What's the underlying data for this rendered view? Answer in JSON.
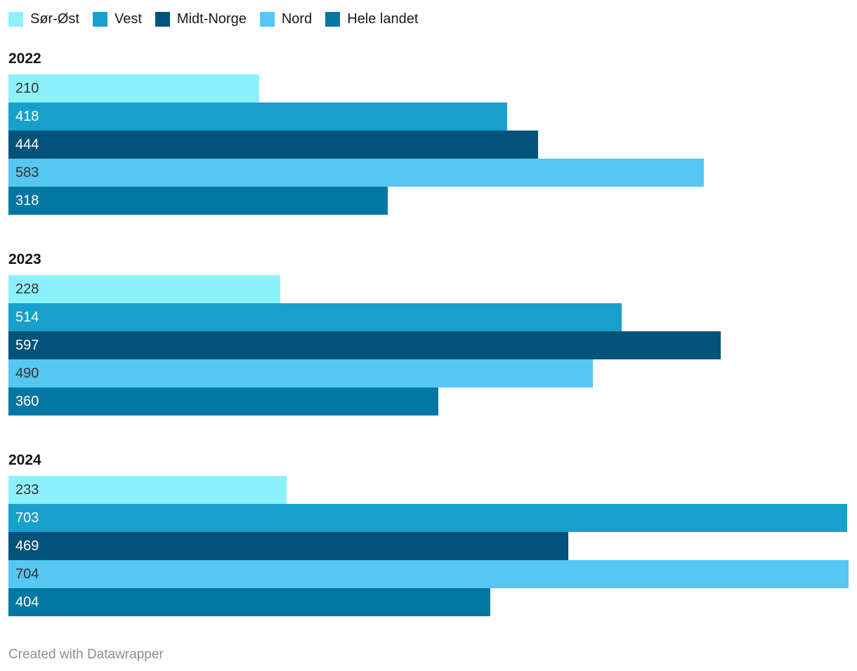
{
  "legend": {
    "position": "top",
    "items": [
      {
        "label": "Sør-Øst",
        "color": "#8BF2FC"
      },
      {
        "label": "Vest",
        "color": "#18A0CD"
      },
      {
        "label": "Midt-Norge",
        "color": "#015379"
      },
      {
        "label": "Nord",
        "color": "#56C6F2"
      },
      {
        "label": "Hele landet",
        "color": "#0277A3"
      }
    ]
  },
  "chart_data": {
    "type": "bar",
    "orientation": "horizontal",
    "grid": false,
    "axis_visible": false,
    "value_labels": "inside-start",
    "xmax": 704,
    "series": [
      {
        "name": "Sør-Øst",
        "color": "#8BF2FC",
        "value_label_color": "#333333"
      },
      {
        "name": "Vest",
        "color": "#18A0CD",
        "value_label_color": "#ffffff"
      },
      {
        "name": "Midt-Norge",
        "color": "#015379",
        "value_label_color": "#ffffff"
      },
      {
        "name": "Nord",
        "color": "#56C6F2",
        "value_label_color": "#333333"
      },
      {
        "name": "Hele landet",
        "color": "#0277A3",
        "value_label_color": "#ffffff"
      }
    ],
    "groups": [
      {
        "label": "2022",
        "values": [
          210,
          418,
          444,
          583,
          318
        ]
      },
      {
        "label": "2023",
        "values": [
          228,
          514,
          597,
          490,
          360
        ]
      },
      {
        "label": "2024",
        "values": [
          233,
          703,
          469,
          704,
          404
        ]
      }
    ]
  },
  "footer": {
    "credit": "Created with Datawrapper"
  }
}
